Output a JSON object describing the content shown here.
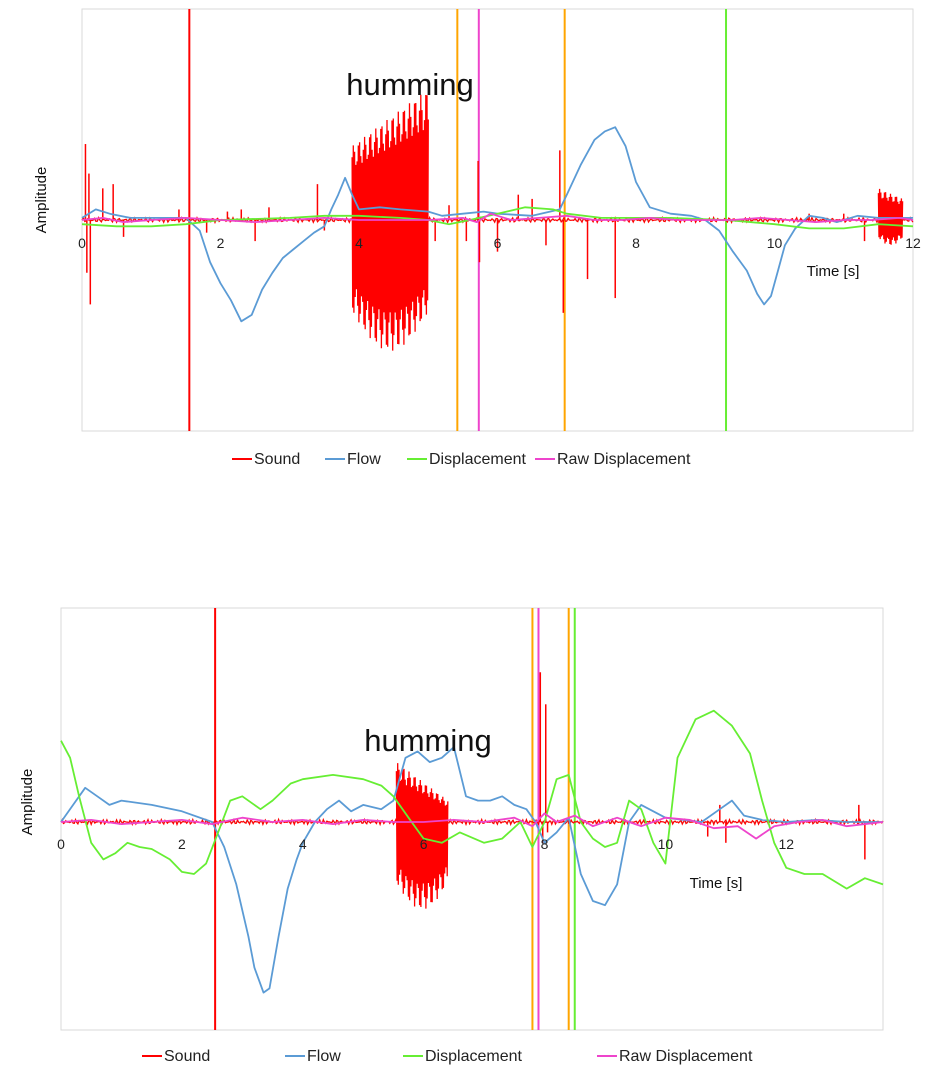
{
  "chart_data": [
    {
      "type": "line",
      "title": "",
      "xlabel": "Time [s]",
      "ylabel": "Amplitude",
      "xlim": [
        0,
        12
      ],
      "ylim": [
        -1,
        1
      ],
      "xticks": [
        0,
        2,
        4,
        6,
        8,
        10,
        12
      ],
      "grid": false,
      "legend": "bottom",
      "annotation": {
        "text": "humming",
        "x": 5.0,
        "y": 0.65
      },
      "markers": [
        {
          "x": 1.55,
          "color": "#ff0000"
        },
        {
          "x": 5.42,
          "color": "#ffa500"
        },
        {
          "x": 5.73,
          "color": "#ee44cc"
        },
        {
          "x": 6.97,
          "color": "#ffa500"
        },
        {
          "x": 9.3,
          "color": "#66ee33"
        }
      ],
      "sound": {
        "bursts": [
          {
            "start": 3.9,
            "end": 5.0,
            "amp_start": 0.35,
            "amp_end": 0.62,
            "amp_neg": 0.62
          },
          {
            "start": 11.5,
            "end": 11.85,
            "amp_start": 0.15,
            "amp_end": 0.1,
            "amp_neg": 0.12
          }
        ],
        "spikes": [
          {
            "x": 0.05,
            "y": 0.36
          },
          {
            "x": 0.07,
            "y": -0.25
          },
          {
            "x": 0.1,
            "y": 0.22
          },
          {
            "x": 0.12,
            "y": -0.4
          },
          {
            "x": 0.3,
            "y": 0.15
          },
          {
            "x": 0.45,
            "y": 0.17
          },
          {
            "x": 0.6,
            "y": -0.08
          },
          {
            "x": 1.4,
            "y": 0.05
          },
          {
            "x": 1.8,
            "y": -0.06
          },
          {
            "x": 2.1,
            "y": 0.04
          },
          {
            "x": 2.3,
            "y": 0.05
          },
          {
            "x": 2.5,
            "y": -0.1
          },
          {
            "x": 2.7,
            "y": 0.06
          },
          {
            "x": 3.4,
            "y": 0.17
          },
          {
            "x": 3.5,
            "y": -0.05
          },
          {
            "x": 5.1,
            "y": -0.1
          },
          {
            "x": 5.3,
            "y": 0.07
          },
          {
            "x": 5.55,
            "y": -0.1
          },
          {
            "x": 5.72,
            "y": 0.28
          },
          {
            "x": 5.74,
            "y": -0.2
          },
          {
            "x": 6.0,
            "y": -0.15
          },
          {
            "x": 6.3,
            "y": 0.12
          },
          {
            "x": 6.5,
            "y": 0.1
          },
          {
            "x": 6.7,
            "y": -0.12
          },
          {
            "x": 6.9,
            "y": 0.33
          },
          {
            "x": 6.95,
            "y": -0.44
          },
          {
            "x": 7.3,
            "y": -0.28
          },
          {
            "x": 7.7,
            "y": -0.37
          },
          {
            "x": 10.5,
            "y": 0.03
          },
          {
            "x": 11.0,
            "y": 0.03
          },
          {
            "x": 11.3,
            "y": -0.1
          }
        ]
      },
      "series": [
        {
          "name": "Flow",
          "color": "#5b9bd5",
          "x": [
            0,
            0.2,
            0.4,
            0.7,
            1.0,
            1.5,
            1.7,
            1.85,
            2.0,
            2.15,
            2.3,
            2.45,
            2.6,
            2.75,
            2.9,
            3.05,
            3.2,
            3.35,
            3.5,
            3.6,
            3.7,
            3.8,
            3.9,
            4.0,
            4.3,
            4.6,
            5.0,
            5.2,
            5.5,
            5.8,
            6.0,
            6.5,
            6.9,
            7.0,
            7.2,
            7.4,
            7.55,
            7.7,
            7.85,
            8.0,
            8.2,
            8.5,
            8.8,
            9.0,
            9.2,
            9.4,
            9.6,
            9.75,
            9.85,
            9.95,
            10.05,
            10.15,
            10.3,
            10.5,
            10.7,
            10.9,
            11.2,
            11.5,
            11.8,
            12.0
          ],
          "y": [
            0.01,
            0.05,
            0.03,
            0.01,
            0.01,
            0.01,
            -0.05,
            -0.2,
            -0.3,
            -0.38,
            -0.48,
            -0.45,
            -0.33,
            -0.25,
            -0.18,
            -0.14,
            -0.1,
            -0.06,
            -0.03,
            0.05,
            0.12,
            0.2,
            0.12,
            0.05,
            0.06,
            0.05,
            0.04,
            0.02,
            0.03,
            0.04,
            0.03,
            0.02,
            0.05,
            0.12,
            0.26,
            0.38,
            0.42,
            0.44,
            0.35,
            0.18,
            0.06,
            0.03,
            0.02,
            0.0,
            -0.05,
            -0.15,
            -0.24,
            -0.35,
            -0.4,
            -0.36,
            -0.24,
            -0.12,
            -0.04,
            0.02,
            0.01,
            -0.01,
            0.02,
            0.01,
            0.01,
            0.01
          ]
        },
        {
          "name": "Displacement",
          "color": "#66ee33",
          "x": [
            0,
            0.5,
            1.0,
            1.5,
            2.0,
            3.0,
            3.5,
            4.0,
            4.6,
            5.0,
            5.3,
            5.6,
            6.0,
            6.4,
            6.8,
            7.0,
            7.5,
            8.5,
            9.3,
            10.0,
            10.5,
            11.0,
            11.5,
            12.0
          ],
          "y": [
            -0.02,
            -0.03,
            -0.03,
            -0.02,
            0.0,
            0.01,
            0.02,
            0.02,
            0.01,
            0.0,
            -0.02,
            0.0,
            0.03,
            0.06,
            0.05,
            0.03,
            0.01,
            0.01,
            0.0,
            -0.02,
            -0.04,
            -0.04,
            -0.02,
            -0.03
          ]
        },
        {
          "name": "Raw Displacement",
          "color": "#ee44cc",
          "x": [
            0,
            0.3,
            0.6,
            1.0,
            1.5,
            2.0,
            2.5,
            3.0,
            3.5,
            4.0,
            4.5,
            5.0,
            5.5,
            5.7,
            5.9,
            6.2,
            6.6,
            7.0,
            7.4,
            7.8,
            8.2,
            8.6,
            9.0,
            9.4,
            9.8,
            10.2,
            10.6,
            11.0,
            11.4,
            11.8,
            12.0
          ],
          "y": [
            0.0,
            0.01,
            -0.01,
            0.0,
            0.01,
            0.0,
            -0.01,
            0.0,
            0.01,
            0.0,
            0.0,
            0.0,
            0.01,
            -0.01,
            0.03,
            0.0,
            0.01,
            0.02,
            0.0,
            0.0,
            0.01,
            0.0,
            0.0,
            0.0,
            0.01,
            0.0,
            -0.01,
            0.0,
            0.0,
            0.01,
            0.0
          ]
        }
      ],
      "legend_entries": [
        {
          "name": "Sound",
          "color": "#ff0000"
        },
        {
          "name": "Flow",
          "color": "#5b9bd5"
        },
        {
          "name": "Displacement",
          "color": "#66ee33"
        },
        {
          "name": "Raw Displacement",
          "color": "#ee44cc"
        }
      ]
    },
    {
      "type": "line",
      "title": "",
      "xlabel": "Time [s]",
      "ylabel": "Amplitude",
      "xlim": [
        0,
        13.6
      ],
      "ylim": [
        -1,
        1
      ],
      "xticks": [
        0,
        2,
        4,
        6,
        8,
        10,
        12
      ],
      "grid": false,
      "legend": "bottom",
      "annotation": {
        "text": "humming",
        "x": 6.3,
        "y": 0.4
      },
      "markers": [
        {
          "x": 2.55,
          "color": "#ff0000"
        },
        {
          "x": 7.8,
          "color": "#ffa500"
        },
        {
          "x": 7.9,
          "color": "#ee44cc"
        },
        {
          "x": 8.4,
          "color": "#ffa500"
        },
        {
          "x": 8.5,
          "color": "#66ee33"
        }
      ],
      "sound": {
        "bursts": [
          {
            "start": 5.55,
            "end": 6.4,
            "amp_start": 0.28,
            "amp_end": 0.1,
            "amp_neg": 0.42
          }
        ],
        "spikes": [
          {
            "x": 7.93,
            "y": 0.7
          },
          {
            "x": 7.97,
            "y": -0.1
          },
          {
            "x": 8.02,
            "y": 0.55
          },
          {
            "x": 8.05,
            "y": -0.05
          },
          {
            "x": 10.7,
            "y": -0.07
          },
          {
            "x": 10.9,
            "y": 0.08
          },
          {
            "x": 11.0,
            "y": -0.1
          },
          {
            "x": 13.2,
            "y": 0.08
          },
          {
            "x": 13.3,
            "y": -0.18
          }
        ]
      },
      "series": [
        {
          "name": "Flow",
          "color": "#5b9bd5",
          "x": [
            0,
            0.2,
            0.4,
            0.6,
            0.8,
            1.0,
            1.5,
            2.0,
            2.5,
            2.7,
            2.9,
            3.1,
            3.2,
            3.35,
            3.45,
            3.6,
            3.75,
            3.9,
            4.0,
            4.2,
            4.4,
            4.6,
            4.8,
            5.0,
            5.3,
            5.5,
            5.7,
            5.9,
            6.1,
            6.3,
            6.5,
            6.7,
            6.9,
            7.1,
            7.3,
            7.5,
            7.7,
            7.85,
            8.0,
            8.2,
            8.4,
            8.6,
            8.8,
            9.0,
            9.2,
            9.4,
            9.6,
            9.8,
            10.0,
            10.3,
            10.6,
            10.9,
            11.1,
            11.3,
            11.6,
            12.0,
            12.5,
            13.0,
            13.6
          ],
          "y": [
            0.0,
            0.08,
            0.16,
            0.12,
            0.08,
            0.1,
            0.08,
            0.05,
            0.0,
            -0.12,
            -0.3,
            -0.55,
            -0.7,
            -0.82,
            -0.8,
            -0.55,
            -0.32,
            -0.18,
            -0.1,
            0.0,
            0.06,
            0.1,
            0.05,
            0.08,
            0.06,
            0.1,
            0.3,
            0.33,
            0.28,
            0.3,
            0.35,
            0.12,
            0.1,
            0.1,
            0.12,
            0.08,
            0.06,
            0.0,
            -0.1,
            -0.05,
            0.02,
            -0.25,
            -0.38,
            -0.4,
            -0.3,
            0.0,
            0.08,
            0.05,
            0.02,
            0.01,
            0.0,
            0.06,
            0.1,
            0.03,
            0.01,
            0.0,
            0.01,
            0.0,
            0.0
          ]
        },
        {
          "name": "Displacement",
          "color": "#66ee33",
          "x": [
            0,
            0.15,
            0.3,
            0.5,
            0.7,
            0.9,
            1.1,
            1.3,
            1.5,
            1.8,
            2.0,
            2.2,
            2.4,
            2.6,
            2.8,
            3.0,
            3.3,
            3.5,
            3.8,
            4.0,
            4.5,
            5.0,
            5.3,
            5.5,
            5.8,
            6.0,
            6.3,
            6.6,
            7.0,
            7.3,
            7.6,
            7.8,
            8.0,
            8.2,
            8.4,
            8.6,
            8.8,
            9.0,
            9.2,
            9.4,
            9.6,
            9.8,
            10.0,
            10.2,
            10.5,
            10.8,
            11.1,
            11.4,
            11.6,
            11.8,
            12.0,
            12.3,
            12.6,
            13.0,
            13.3,
            13.6
          ],
          "y": [
            0.38,
            0.3,
            0.12,
            -0.1,
            -0.18,
            -0.15,
            -0.1,
            -0.12,
            -0.13,
            -0.18,
            -0.24,
            -0.25,
            -0.2,
            -0.05,
            0.1,
            0.12,
            0.06,
            0.1,
            0.18,
            0.2,
            0.22,
            0.2,
            0.17,
            0.12,
            0.0,
            -0.08,
            -0.1,
            -0.05,
            -0.1,
            -0.08,
            0.0,
            -0.12,
            0.0,
            0.2,
            0.22,
            0.0,
            -0.08,
            -0.12,
            -0.1,
            0.1,
            0.06,
            -0.1,
            -0.2,
            0.3,
            0.48,
            0.52,
            0.45,
            0.32,
            0.1,
            -0.1,
            -0.22,
            -0.25,
            -0.25,
            -0.32,
            -0.27,
            -0.3
          ]
        },
        {
          "name": "Raw Displacement",
          "color": "#ee44cc",
          "x": [
            0,
            0.5,
            1.0,
            1.5,
            2.0,
            2.5,
            3.0,
            3.5,
            4.0,
            4.5,
            5.0,
            5.5,
            6.0,
            6.5,
            7.0,
            7.5,
            7.8,
            8.0,
            8.2,
            8.5,
            8.8,
            9.2,
            9.6,
            10.0,
            10.4,
            10.8,
            11.2,
            11.5,
            11.8,
            12.2,
            12.6,
            13.0,
            13.6
          ],
          "y": [
            0.0,
            0.01,
            -0.01,
            0.0,
            0.01,
            -0.01,
            0.02,
            0.0,
            0.01,
            -0.01,
            0.01,
            0.0,
            0.0,
            0.01,
            0.0,
            0.02,
            -0.02,
            0.04,
            0.0,
            0.03,
            -0.02,
            0.02,
            -0.02,
            0.02,
            0.01,
            -0.03,
            -0.02,
            -0.08,
            -0.02,
            0.0,
            0.01,
            -0.02,
            0.0
          ]
        }
      ],
      "legend_entries": [
        {
          "name": "Sound",
          "color": "#ff0000"
        },
        {
          "name": "Flow",
          "color": "#5b9bd5"
        },
        {
          "name": "Displacement",
          "color": "#66ee33"
        },
        {
          "name": "Raw Displacement",
          "color": "#ee44cc"
        }
      ]
    }
  ]
}
